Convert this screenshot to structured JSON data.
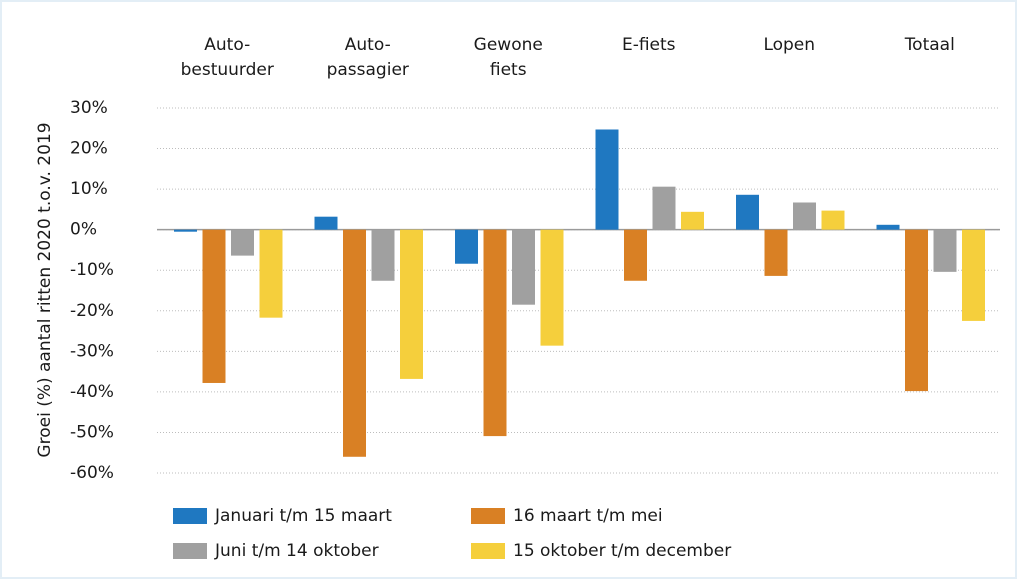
{
  "chart_data": {
    "type": "bar",
    "y_label": "Groei (%) aantal ritten 2020 t.o.v. 2019",
    "categories": [
      "Auto-\nbestuurder",
      "Auto-\npassagier",
      "Gewone\nfiets",
      "E-fiets",
      "Lopen",
      "Totaal"
    ],
    "series": [
      {
        "name": "Januari t/m 15 maart",
        "color": "#1f78c1",
        "values": [
          -0.5,
          3.2,
          -8.4,
          24.7,
          8.6,
          1.2
        ]
      },
      {
        "name": "16 maart t/m mei",
        "color": "#d98024",
        "values": [
          -37.8,
          -56,
          -50.9,
          -12.6,
          -11.4,
          -39.8
        ]
      },
      {
        "name": "Juni t/m 14 oktober",
        "color": "#a0a0a0",
        "values": [
          -6.4,
          -12.6,
          -18.5,
          10.6,
          6.7,
          -10.4
        ]
      },
      {
        "name": "15 oktober t/m december",
        "color": "#f5cf3c",
        "values": [
          -21.7,
          -36.8,
          -28.6,
          4.4,
          4.7,
          -22.5
        ]
      }
    ],
    "ylim": [
      -60,
      30
    ],
    "yticks": [
      {
        "value": 30,
        "label": "30%"
      },
      {
        "value": 20,
        "label": "20%"
      },
      {
        "value": 10,
        "label": "10%"
      },
      {
        "value": 0,
        "label": "0%"
      },
      {
        "value": -10,
        "label": "-10%"
      },
      {
        "value": -20,
        "label": "-20%"
      },
      {
        "value": -30,
        "label": "-30%"
      },
      {
        "value": -40,
        "label": "-40%"
      },
      {
        "value": -50,
        "label": "-50%"
      },
      {
        "value": -60,
        "label": "-60%"
      }
    ],
    "grid": true,
    "legend": "bottom"
  }
}
